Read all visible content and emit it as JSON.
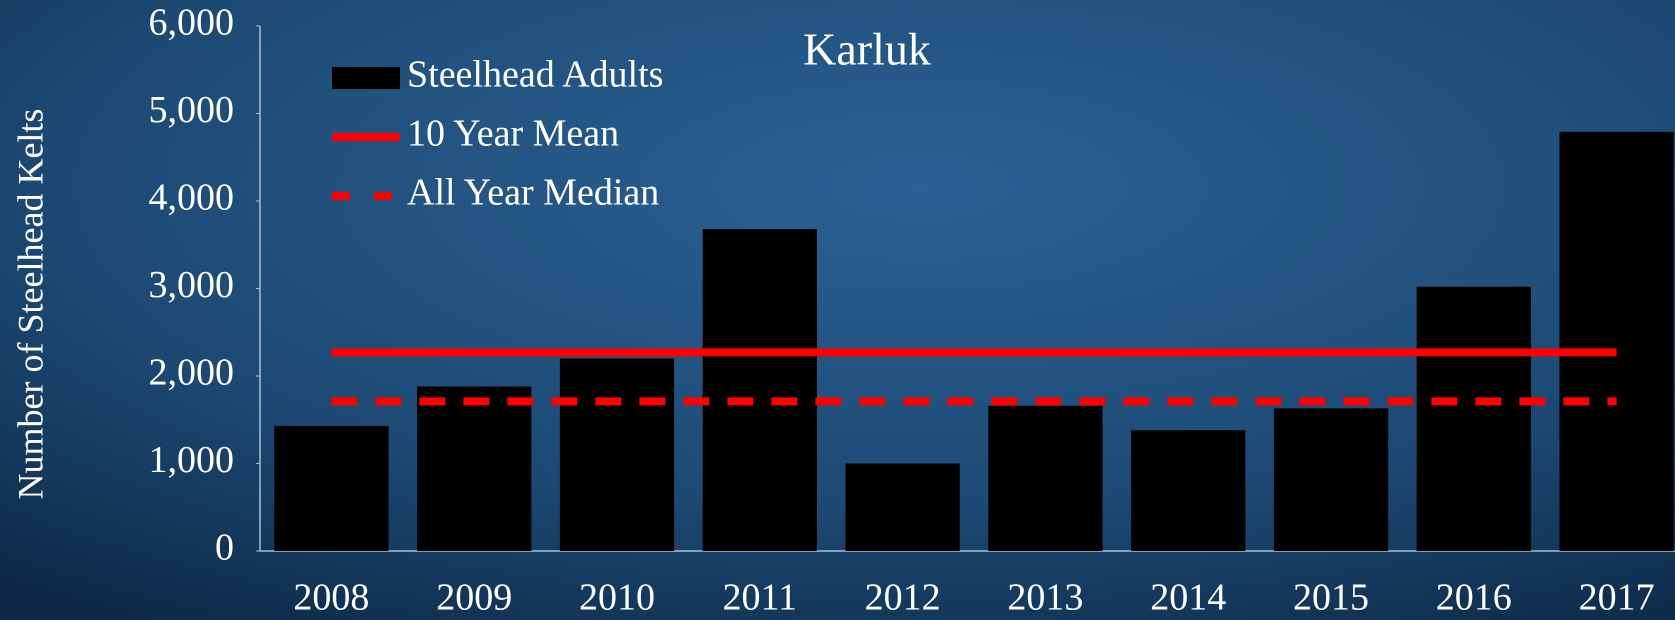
{
  "chart_data": {
    "type": "bar",
    "title": "Karluk",
    "y_label": "Number of Steelhead Kelts",
    "categories": [
      "2008",
      "2009",
      "2010",
      "2011",
      "2012",
      "2013",
      "2014",
      "2015",
      "2016",
      "2017"
    ],
    "series": [
      {
        "name": "Steelhead Adults",
        "type": "bar",
        "color": "#000000",
        "values": [
          1430,
          1880,
          2200,
          3680,
          1000,
          1660,
          1380,
          1630,
          3020,
          4790
        ]
      },
      {
        "name": "10 Year Mean",
        "type": "line",
        "color": "#ff0000",
        "dashed": false,
        "values": [
          2270,
          2270,
          2270,
          2270,
          2270,
          2270,
          2270,
          2270,
          2270,
          2270
        ]
      },
      {
        "name": "All Year Median",
        "type": "line",
        "color": "#ff0000",
        "dashed": true,
        "values": [
          1710,
          1710,
          1710,
          1710,
          1710,
          1710,
          1710,
          1710,
          1710,
          1710
        ]
      }
    ],
    "ylim": [
      0,
      6000
    ],
    "yticks": [
      0,
      {
        "value": 1000,
        "label": "1,000"
      },
      {
        "value": 2000,
        "label": "2,000"
      },
      {
        "value": 3000,
        "label": "3,000"
      },
      {
        "value": 4000,
        "label": "4,000"
      },
      {
        "value": 5000,
        "label": "5,000"
      },
      {
        "value": 6000,
        "label": "6,000"
      }
    ],
    "grid": false,
    "legend": "upper left"
  }
}
